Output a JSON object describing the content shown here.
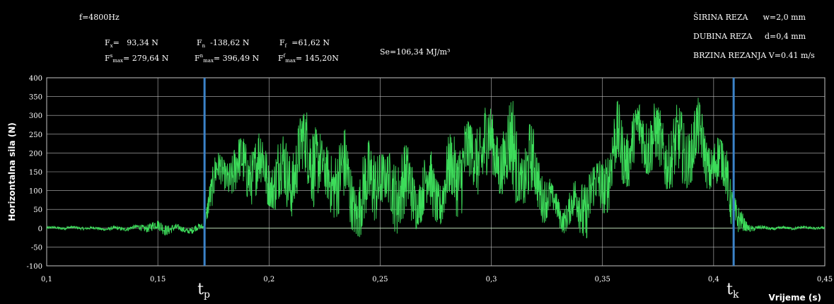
{
  "header": {
    "freq": "f=4800Hz",
    "stats_row1": [
      {
        "sym": "F",
        "sub": "x",
        "sup": "",
        "value": "=   93,34 N"
      },
      {
        "sym": "F",
        "sub": "n",
        "sup": "",
        "value": "  -138,62 N"
      },
      {
        "sym": "F",
        "sub": "f",
        "sup": "",
        "value": "  =61,62 N"
      }
    ],
    "stats_row2": [
      {
        "sym": "F",
        "sub": "max",
        "sup": "s",
        "value": "= 279,64 N"
      },
      {
        "sym": "F",
        "sub": "max",
        "sup": "n",
        "value": "= 396,49 N"
      },
      {
        "sym": "F",
        "sub": "max",
        "sup": "f",
        "value": "= 145,20N"
      }
    ],
    "energy": "Se=106,34 MJ/m³",
    "params": [
      "ŠIRINA REZA      w=2,0 mm",
      "DUBINA REZA     d=0,4 mm",
      "BRZINA REZANJA V=0.41 m/s"
    ]
  },
  "chart_data": {
    "type": "line",
    "title": "",
    "xlabel": "Vrijeme (s)",
    "ylabel": "Horizontalna sila (N)",
    "xlim": [
      0.1,
      0.45
    ],
    "ylim": [
      -100,
      400
    ],
    "x_ticks": [
      "0,1",
      "0,15",
      "0,2",
      "0,25",
      "0,3",
      "0,35",
      "0,4",
      "0,45"
    ],
    "y_ticks": [
      "400",
      "350",
      "300",
      "250",
      "200",
      "150",
      "100",
      "50",
      "0",
      "-50",
      "-100"
    ],
    "grid": true,
    "series": [
      {
        "name": "",
        "color": "#3ddc5a",
        "envelope": {
          "x": [
            0.1,
            0.12,
            0.14,
            0.152,
            0.16,
            0.165,
            0.171,
            0.173,
            0.176,
            0.18,
            0.185,
            0.19,
            0.197,
            0.2,
            0.205,
            0.21,
            0.215,
            0.22,
            0.225,
            0.23,
            0.235,
            0.24,
            0.243,
            0.247,
            0.252,
            0.257,
            0.262,
            0.267,
            0.272,
            0.277,
            0.282,
            0.287,
            0.292,
            0.297,
            0.302,
            0.307,
            0.31,
            0.313,
            0.317,
            0.322,
            0.327,
            0.332,
            0.337,
            0.342,
            0.347,
            0.352,
            0.357,
            0.362,
            0.367,
            0.372,
            0.377,
            0.382,
            0.387,
            0.392,
            0.397,
            0.402,
            0.406,
            0.409,
            0.411,
            0.415,
            0.42,
            0.43,
            0.45
          ],
          "max": [
            5,
            5,
            8,
            22,
            10,
            12,
            15,
            150,
            210,
            180,
            230,
            250,
            300,
            240,
            290,
            260,
            300,
            330,
            200,
            280,
            290,
            180,
            230,
            300,
            180,
            220,
            220,
            170,
            250,
            190,
            270,
            310,
            260,
            360,
            280,
            370,
            400,
            260,
            310,
            200,
            120,
            60,
            120,
            210,
            200,
            300,
            340,
            290,
            330,
            340,
            310,
            360,
            340,
            370,
            260,
            240,
            220,
            120,
            60,
            20,
            10,
            5,
            5
          ],
          "min": [
            -5,
            -5,
            -8,
            -22,
            -10,
            -15,
            -5,
            40,
            60,
            80,
            40,
            60,
            70,
            60,
            40,
            30,
            60,
            30,
            20,
            30,
            10,
            -20,
            -50,
            20,
            0,
            -40,
            -60,
            10,
            30,
            10,
            30,
            20,
            40,
            60,
            80,
            100,
            30,
            80,
            40,
            20,
            -10,
            -20,
            -20,
            -40,
            40,
            40,
            100,
            90,
            120,
            110,
            100,
            110,
            100,
            140,
            90,
            50,
            40,
            -30,
            -40,
            -10,
            -5,
            -5,
            -5
          ]
        },
        "flat_level": 0
      }
    ],
    "markers": [
      {
        "x": 0.171,
        "label": "t",
        "sub": "p",
        "color": "#3b82c8"
      },
      {
        "x": 0.409,
        "label": "t",
        "sub": "k",
        "color": "#3b82c8"
      }
    ]
  }
}
